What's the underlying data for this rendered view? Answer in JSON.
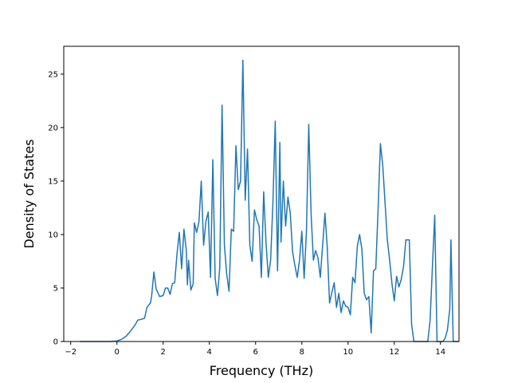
{
  "chart_data": {
    "type": "line",
    "title": "",
    "xlabel": "Frequency (THz)",
    "ylabel": "Density of States",
    "xlim": [
      -2.3,
      14.8
    ],
    "ylim": [
      0,
      27.6
    ],
    "xticks": [
      -2,
      0,
      2,
      4,
      6,
      8,
      10,
      12,
      14
    ],
    "yticks": [
      0,
      5,
      10,
      15,
      20,
      25
    ],
    "grid": false,
    "legend": "none",
    "line_color": "#1f77b4",
    "series": [
      {
        "points": [
          [
            -1.6,
            0
          ],
          [
            -0.3,
            0
          ],
          [
            0.0,
            0.05
          ],
          [
            0.2,
            0.2
          ],
          [
            0.4,
            0.5
          ],
          [
            0.6,
            1.0
          ],
          [
            0.8,
            1.6
          ],
          [
            0.9,
            2.0
          ],
          [
            1.1,
            2.1
          ],
          [
            1.2,
            2.2
          ],
          [
            1.3,
            3.2
          ],
          [
            1.45,
            3.6
          ],
          [
            1.5,
            4.2
          ],
          [
            1.6,
            6.5
          ],
          [
            1.7,
            4.9
          ],
          [
            1.85,
            4.2
          ],
          [
            2.0,
            4.3
          ],
          [
            2.1,
            5.0
          ],
          [
            2.2,
            5.0
          ],
          [
            2.3,
            4.4
          ],
          [
            2.4,
            5.4
          ],
          [
            2.5,
            5.5
          ],
          [
            2.6,
            8.2
          ],
          [
            2.7,
            10.2
          ],
          [
            2.8,
            6.8
          ],
          [
            2.9,
            10.5
          ],
          [
            3.0,
            8.6
          ],
          [
            3.05,
            5.3
          ],
          [
            3.1,
            7.6
          ],
          [
            3.2,
            4.8
          ],
          [
            3.3,
            5.4
          ],
          [
            3.35,
            11.1
          ],
          [
            3.45,
            10.2
          ],
          [
            3.55,
            11.2
          ],
          [
            3.65,
            15.0
          ],
          [
            3.75,
            9.0
          ],
          [
            3.85,
            11.2
          ],
          [
            3.95,
            12.1
          ],
          [
            4.05,
            6.0
          ],
          [
            4.15,
            17.0
          ],
          [
            4.25,
            5.9
          ],
          [
            4.35,
            4.3
          ],
          [
            4.45,
            6.9
          ],
          [
            4.55,
            22.1
          ],
          [
            4.65,
            9.0
          ],
          [
            4.75,
            6.3
          ],
          [
            4.85,
            4.7
          ],
          [
            4.95,
            10.5
          ],
          [
            5.05,
            10.3
          ],
          [
            5.15,
            18.3
          ],
          [
            5.25,
            14.2
          ],
          [
            5.35,
            15.0
          ],
          [
            5.45,
            26.3
          ],
          [
            5.55,
            13.2
          ],
          [
            5.65,
            18.0
          ],
          [
            5.75,
            9.0
          ],
          [
            5.85,
            7.5
          ],
          [
            5.95,
            12.3
          ],
          [
            6.05,
            11.4
          ],
          [
            6.15,
            10.8
          ],
          [
            6.25,
            6.0
          ],
          [
            6.35,
            14.0
          ],
          [
            6.45,
            9.3
          ],
          [
            6.55,
            6.0
          ],
          [
            6.65,
            7.6
          ],
          [
            6.75,
            13.0
          ],
          [
            6.85,
            20.6
          ],
          [
            6.95,
            6.6
          ],
          [
            7.05,
            18.6
          ],
          [
            7.1,
            9.3
          ],
          [
            7.2,
            15.0
          ],
          [
            7.3,
            10.8
          ],
          [
            7.4,
            13.5
          ],
          [
            7.5,
            12.0
          ],
          [
            7.6,
            8.4
          ],
          [
            7.7,
            7.1
          ],
          [
            7.8,
            6.0
          ],
          [
            7.9,
            7.6
          ],
          [
            8.0,
            10.3
          ],
          [
            8.1,
            5.9
          ],
          [
            8.2,
            10.3
          ],
          [
            8.3,
            20.3
          ],
          [
            8.4,
            12.0
          ],
          [
            8.5,
            7.6
          ],
          [
            8.6,
            8.5
          ],
          [
            8.7,
            7.8
          ],
          [
            8.8,
            6.0
          ],
          [
            8.9,
            9.0
          ],
          [
            9.0,
            12.0
          ],
          [
            9.1,
            8.8
          ],
          [
            9.2,
            3.6
          ],
          [
            9.3,
            4.6
          ],
          [
            9.4,
            5.5
          ],
          [
            9.5,
            3.2
          ],
          [
            9.6,
            4.5
          ],
          [
            9.7,
            2.7
          ],
          [
            9.8,
            3.8
          ],
          [
            9.9,
            3.3
          ],
          [
            10.0,
            3.2
          ],
          [
            10.1,
            2.5
          ],
          [
            10.2,
            6.0
          ],
          [
            10.3,
            5.5
          ],
          [
            10.4,
            8.9
          ],
          [
            10.5,
            10.0
          ],
          [
            10.6,
            8.6
          ],
          [
            10.7,
            4.5
          ],
          [
            10.8,
            3.9
          ],
          [
            10.9,
            4.2
          ],
          [
            11.0,
            0.8
          ],
          [
            11.1,
            6.6
          ],
          [
            11.2,
            6.8
          ],
          [
            11.3,
            12.4
          ],
          [
            11.4,
            18.5
          ],
          [
            11.5,
            16.5
          ],
          [
            11.6,
            13.0
          ],
          [
            11.7,
            9.5
          ],
          [
            11.8,
            7.6
          ],
          [
            11.9,
            5.4
          ],
          [
            12.0,
            3.8
          ],
          [
            12.1,
            6.1
          ],
          [
            12.2,
            5.1
          ],
          [
            12.3,
            5.8
          ],
          [
            12.4,
            7.0
          ],
          [
            12.5,
            9.5
          ],
          [
            12.65,
            9.5
          ],
          [
            12.75,
            1.6
          ],
          [
            12.85,
            0
          ],
          [
            13.45,
            0
          ],
          [
            13.55,
            2.0
          ],
          [
            13.65,
            7.0
          ],
          [
            13.75,
            11.8
          ],
          [
            13.85,
            0
          ],
          [
            13.95,
            0
          ],
          [
            14.1,
            0
          ],
          [
            14.2,
            0.3
          ],
          [
            14.3,
            1.1
          ],
          [
            14.4,
            3.0
          ],
          [
            14.45,
            9.5
          ],
          [
            14.55,
            0
          ],
          [
            14.8,
            0
          ]
        ]
      }
    ]
  }
}
